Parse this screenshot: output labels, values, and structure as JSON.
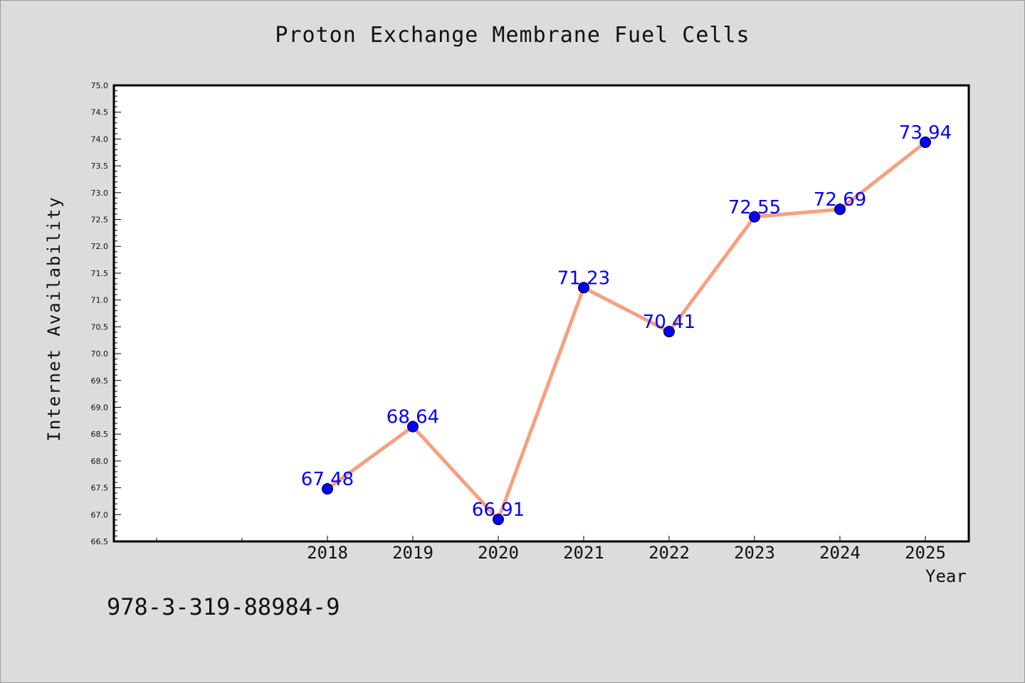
{
  "page": {
    "isbn": "978-3-319-88984-9"
  },
  "colors": {
    "background": "#dcdcdc",
    "plot_background": "#ffffff",
    "line": "#f7a07e",
    "marker": "#0000ff",
    "data_label": "#0000ff"
  },
  "chart_data": {
    "type": "line",
    "title": "Proton Exchange Membrane Fuel Cells",
    "xlabel": "Year",
    "ylabel": "Internet Availability",
    "x": [
      "2018",
      "2019",
      "2020",
      "2021",
      "2022",
      "2023",
      "2024",
      "2025"
    ],
    "series": [
      {
        "values": [
          67.48,
          68.64,
          66.91,
          71.23,
          70.41,
          72.55,
          72.69,
          73.94
        ]
      }
    ],
    "data_labels": [
      "67.48",
      "68.64",
      "66.91",
      "71.23",
      "70.41",
      "72.55",
      "72.69",
      "73.94"
    ],
    "ylim": [
      66.5,
      75.0
    ],
    "y_ticks": [
      "66.5",
      "67.0",
      "67.5",
      "68.0",
      "68.5",
      "69.0",
      "69.5",
      "70.0",
      "70.5",
      "71.0",
      "71.5",
      "72.0",
      "72.5",
      "73.0",
      "73.5",
      "74.0",
      "74.5",
      "75.0"
    ],
    "grid": false,
    "legend": "none"
  }
}
